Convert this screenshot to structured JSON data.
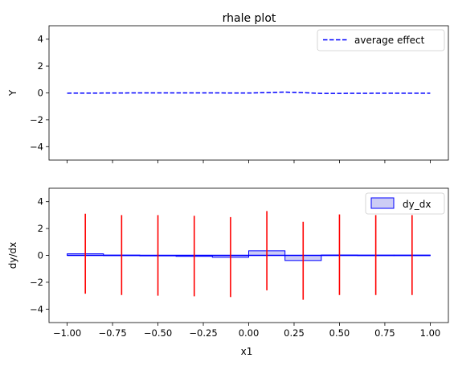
{
  "chart_data": [
    {
      "type": "line",
      "title": "rhale plot",
      "xlabel": "",
      "ylabel": "Y",
      "xlim": [
        -1.1,
        1.1
      ],
      "ylim": [
        -5,
        5
      ],
      "yticks": [
        4,
        2,
        0,
        -2,
        -4
      ],
      "ytick_labels": [
        "4",
        "2",
        "0",
        "−2",
        "−4"
      ],
      "xticks": [
        -1.0,
        -0.75,
        -0.5,
        -0.25,
        0.0,
        0.25,
        0.5,
        0.75,
        1.0
      ],
      "xticks_labeled": false,
      "legend": {
        "position": "top-right",
        "entries": [
          "average effect"
        ]
      },
      "colors": {
        "average_effect": "#0000ff"
      },
      "series": [
        {
          "name": "average effect",
          "style": "dashed",
          "x": [
            -1.0,
            -0.8,
            -0.6,
            -0.4,
            -0.2,
            0.0,
            0.2,
            0.3,
            0.4,
            0.6,
            0.8,
            1.0
          ],
          "y": [
            -0.02,
            -0.01,
            0.0,
            0.0,
            0.0,
            -0.01,
            0.06,
            0.02,
            -0.04,
            -0.03,
            -0.02,
            -0.02
          ]
        }
      ]
    },
    {
      "type": "bar",
      "title": "",
      "xlabel": "x1",
      "ylabel": "dy/dx",
      "xlim": [
        -1.1,
        1.1
      ],
      "ylim": [
        -5,
        5
      ],
      "yticks": [
        4,
        2,
        0,
        -2,
        -4
      ],
      "ytick_labels": [
        "4",
        "2",
        "0",
        "−2",
        "−4"
      ],
      "xticks": [
        -1.0,
        -0.75,
        -0.5,
        -0.25,
        0.0,
        0.25,
        0.5,
        0.75,
        1.0
      ],
      "xtick_labels": [
        "−1.00",
        "−0.75",
        "−0.50",
        "−0.25",
        "0.00",
        "0.25",
        "0.50",
        "0.75",
        "1.00"
      ],
      "legend": {
        "position": "top-right",
        "entries": [
          "dy_dx"
        ]
      },
      "colors": {
        "bins": "#0000ff",
        "bin_fill": "#ccccf5",
        "error_bars": "#ff0000"
      },
      "bins": [
        {
          "x0": -1.0,
          "x1": -0.8,
          "value": 0.12
        },
        {
          "x0": -0.8,
          "x1": -0.6,
          "value": 0.02
        },
        {
          "x0": -0.6,
          "x1": -0.4,
          "value": 0.0
        },
        {
          "x0": -0.4,
          "x1": -0.2,
          "value": -0.07
        },
        {
          "x0": -0.2,
          "x1": 0.0,
          "value": -0.14
        },
        {
          "x0": 0.0,
          "x1": 0.2,
          "value": 0.34
        },
        {
          "x0": 0.2,
          "x1": 0.4,
          "value": -0.38
        },
        {
          "x0": 0.4,
          "x1": 0.6,
          "value": 0.03
        },
        {
          "x0": 0.6,
          "x1": 0.8,
          "value": 0.02
        },
        {
          "x0": 0.8,
          "x1": 1.0,
          "value": 0.02
        }
      ],
      "error_bars": [
        {
          "x": -0.9,
          "low": -2.85,
          "high": 3.1
        },
        {
          "x": -0.7,
          "low": -2.95,
          "high": 3.0
        },
        {
          "x": -0.5,
          "low": -3.0,
          "high": 3.0
        },
        {
          "x": -0.3,
          "low": -3.05,
          "high": 2.95
        },
        {
          "x": -0.1,
          "low": -3.1,
          "high": 2.85
        },
        {
          "x": 0.1,
          "low": -2.6,
          "high": 3.3
        },
        {
          "x": 0.3,
          "low": -3.3,
          "high": 2.5
        },
        {
          "x": 0.5,
          "low": -2.95,
          "high": 3.05
        },
        {
          "x": 0.7,
          "low": -2.95,
          "high": 3.0
        },
        {
          "x": 0.9,
          "low": -2.95,
          "high": 3.0
        }
      ]
    }
  ]
}
